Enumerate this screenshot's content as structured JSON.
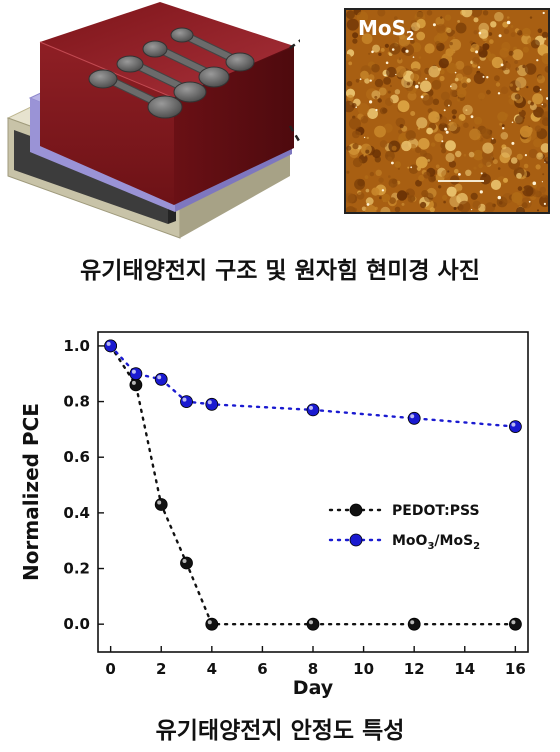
{
  "figure": {
    "afm_label_main": "MoS",
    "afm_label_sub": "2",
    "caption_top": "유기태양전지 구조 및 원자힘 현미경 사진",
    "caption_bottom": "유기태양전지 안정도 특성"
  },
  "colors": {
    "series_black": "#111111",
    "series_blue": "#1a1ad0",
    "afm_brown": "#a85f12",
    "device_red": "#8c1e22"
  },
  "chart_data": {
    "type": "scatter",
    "xlabel": "Day",
    "ylabel": "Normalized PCE",
    "xlim": [
      -0.5,
      16.5
    ],
    "ylim": [
      -0.1,
      1.05
    ],
    "xticks": [
      0,
      2,
      4,
      6,
      8,
      10,
      12,
      14,
      16
    ],
    "yticks": [
      "0.0",
      "0.2",
      "0.4",
      "0.6",
      "0.8",
      "1.0"
    ],
    "legend_position": "center-right",
    "series": [
      {
        "name": "PEDOT:PSS",
        "color": "#111111",
        "x": [
          0,
          1,
          2,
          3,
          4,
          8,
          12,
          16
        ],
        "y": [
          1.0,
          0.86,
          0.43,
          0.22,
          0.0,
          0.0,
          0.0,
          0.0
        ]
      },
      {
        "name": "MoO3/MoS2",
        "label_parts": [
          "MoO",
          "3",
          "/MoS",
          "2"
        ],
        "color": "#1a1ad0",
        "x": [
          0,
          1,
          2,
          3,
          4,
          8,
          12,
          16
        ],
        "y": [
          1.0,
          0.9,
          0.88,
          0.8,
          0.79,
          0.77,
          0.74,
          0.71
        ]
      }
    ]
  }
}
